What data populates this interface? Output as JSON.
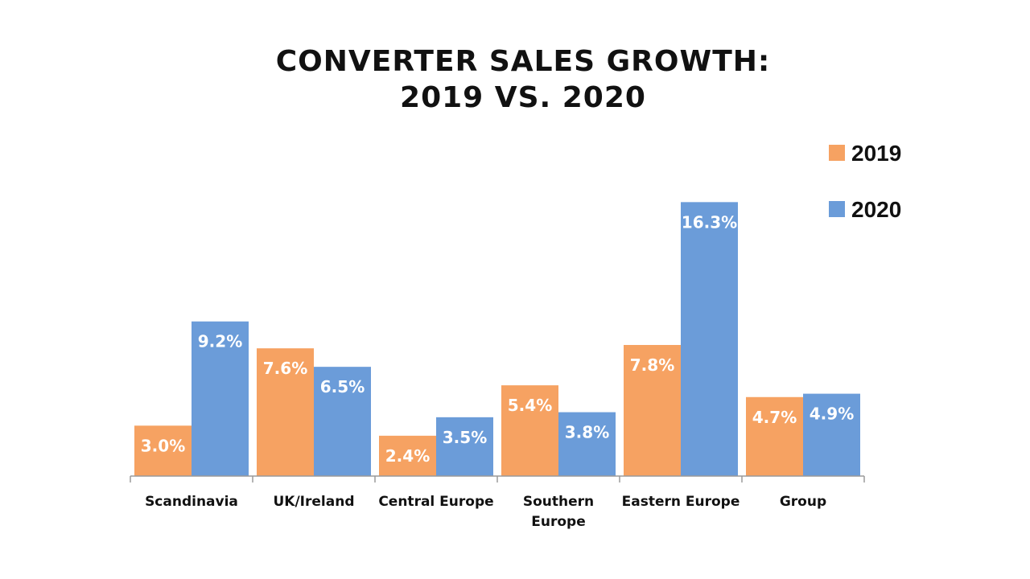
{
  "chart_data": {
    "type": "bar",
    "title_lines": [
      "CONVERTER SALES GROWTH:",
      "2019 VS. 2020"
    ],
    "categories": [
      [
        "Scandinavia"
      ],
      [
        "UK/Ireland"
      ],
      [
        "Central Europe"
      ],
      [
        "Southern",
        "Europe"
      ],
      [
        "Eastern Europe"
      ],
      [
        "Group"
      ]
    ],
    "series": [
      {
        "name": "2019",
        "color": "#F6A262",
        "values": [
          3.0,
          7.6,
          2.4,
          5.4,
          7.8,
          4.7
        ],
        "labels": [
          "3.0%",
          "7.6%",
          "2.4%",
          "5.4%",
          "7.8%",
          "4.7%"
        ]
      },
      {
        "name": "2020",
        "color": "#6B9CD9",
        "values": [
          9.2,
          6.5,
          3.5,
          3.8,
          16.3,
          4.9
        ],
        "labels": [
          "9.2%",
          "6.5%",
          "3.5%",
          "3.8%",
          "16.3%",
          "4.9%"
        ]
      }
    ],
    "ylim": [
      0,
      18
    ],
    "xlabel": "",
    "ylabel": "",
    "legend_position": "top-right",
    "grid": false
  }
}
